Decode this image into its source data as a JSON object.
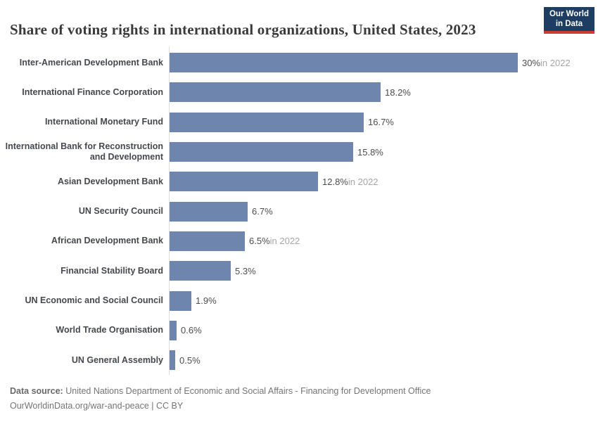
{
  "header": {
    "title": "Share of voting rights in international organizations, United States, 2023",
    "logo": {
      "line1": "Our World",
      "line2": "in Data"
    }
  },
  "chart_data": {
    "type": "bar",
    "orientation": "horizontal",
    "title": "Share of voting rights in international organizations, United States, 2023",
    "xlabel": "",
    "ylabel": "",
    "unit": "%",
    "xlim": [
      0,
      30
    ],
    "grid": false,
    "legend": false,
    "categories": [
      "Inter-American Development Bank",
      "International Finance Corporation",
      "International Monetary Fund",
      "International Bank for Reconstruction and Development",
      "Asian Development Bank",
      "UN Security Council",
      "African Development Bank",
      "Financial Stability Board",
      "UN Economic and Social Council",
      "World Trade Organisation",
      "UN General Assembly"
    ],
    "values": [
      30,
      18.2,
      16.7,
      15.8,
      12.8,
      6.7,
      6.5,
      5.3,
      1.9,
      0.6,
      0.5
    ],
    "value_labels": [
      "30%",
      "18.2%",
      "16.7%",
      "15.8%",
      "12.8%",
      "6.7%",
      "6.5%",
      "5.3%",
      "1.9%",
      "0.6%",
      "0.5%"
    ],
    "value_notes": [
      "in 2022",
      "",
      "",
      "",
      "in 2022",
      "",
      "in 2022",
      "",
      "",
      "",
      ""
    ]
  },
  "footer": {
    "source_label": "Data source:",
    "source_text": "United Nations Department of Economic and Social Affairs - Financing for Development Office",
    "link_text": "OurWorldinData.org/war-and-peace",
    "separator": "|",
    "license_text": "CC BY"
  },
  "colors": {
    "bar": "#6e85ad",
    "axis": "#dcdcdc",
    "logo_bg": "#1d3d63",
    "logo_accent": "#cf3a35",
    "title_text": "#3a3a3a",
    "category_text": "#45494d",
    "value_text": "#4d4d4d",
    "note_text": "#a6a6a6",
    "footer_text": "#757575"
  }
}
